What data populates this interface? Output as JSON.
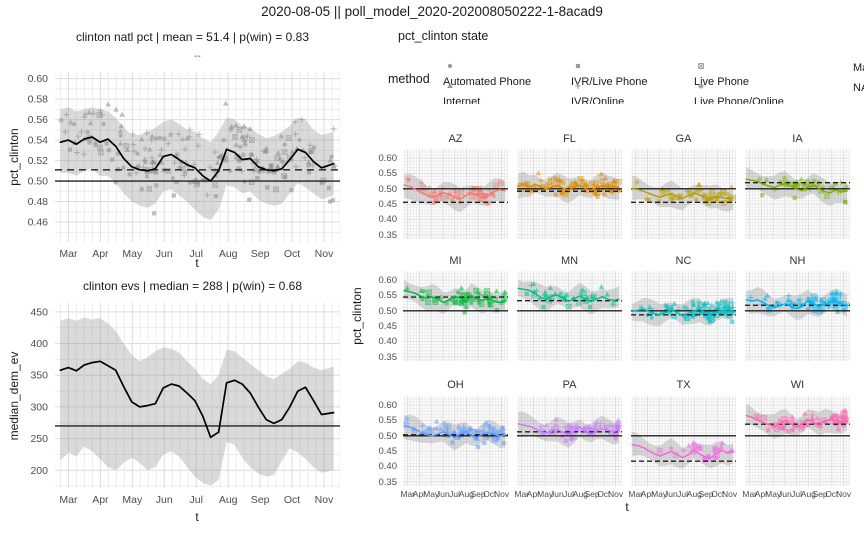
{
  "page": {
    "title": "2020-08-05 || poll_model_2020-202008050222-1-8acad9"
  },
  "left": {
    "natl": {
      "title": "clinton natl pct | mean = 51.4 | p(win) = 0.83",
      "strip_label": "--",
      "ylabel": "pct_clinton",
      "xlabel": "t"
    },
    "ev": {
      "title": "clinton evs | median = 288 | p(win) = 0.68",
      "ylabel": "median_dem_ev",
      "xlabel": "t"
    }
  },
  "right": {
    "subtitle": "pct_clinton state",
    "ylabel": "pct_clinton",
    "xlabel": "t",
    "legend": {
      "title": "method",
      "items": [
        {
          "symbol": "circle",
          "label": "Automated Phone"
        },
        {
          "symbol": "triangle",
          "label": "Internet"
        },
        {
          "symbol": "square",
          "label": "IVR/Live Phone"
        },
        {
          "symbol": "plus",
          "label": "IVR/Online"
        },
        {
          "symbol": "box-x",
          "label": "Live Phone"
        },
        {
          "symbol": "asterisk",
          "label": "Live Phone/Online"
        },
        {
          "symbol": null,
          "label": "Mail"
        },
        {
          "symbol": null,
          "label": "NA"
        }
      ]
    }
  },
  "months": [
    "Mar",
    "Apr",
    "May",
    "Jun",
    "Jul",
    "Aug",
    "Sep",
    "Oct",
    "Nov"
  ],
  "chart_data": [
    {
      "type": "line",
      "title": "clinton natl pct | mean = 51.4 | p(win) = 0.83",
      "xlabel": "t",
      "ylabel": "pct_clinton",
      "xlim": [
        2.58,
        11.5
      ],
      "ylim": [
        0.4405,
        0.6065
      ],
      "yticks": [
        0.46,
        0.48,
        0.5,
        0.52,
        0.54,
        0.56,
        0.58,
        0.6
      ],
      "ytick_minor": 0.01,
      "ytick_major": 0.02,
      "hline_solid": 0.5,
      "hline_dashed": 0.511,
      "line_color": "#000000",
      "xs": [
        2.75,
        3.0,
        3.25,
        3.49,
        3.74,
        3.99,
        4.24,
        4.48,
        4.73,
        4.98,
        5.23,
        5.47,
        5.72,
        5.97,
        6.22,
        6.46,
        6.71,
        6.96,
        7.21,
        7.45,
        7.7,
        7.95,
        8.2,
        8.44,
        8.69,
        8.94,
        9.19,
        9.43,
        9.68,
        9.93,
        10.18,
        10.42,
        10.67,
        10.92,
        11.3
      ],
      "line": [
        0.538,
        0.54,
        0.536,
        0.541,
        0.543,
        0.538,
        0.541,
        0.534,
        0.522,
        0.514,
        0.511,
        0.51,
        0.512,
        0.524,
        0.526,
        0.521,
        0.516,
        0.513,
        0.505,
        0.5,
        0.51,
        0.531,
        0.528,
        0.521,
        0.522,
        0.514,
        0.511,
        0.51,
        0.512,
        0.521,
        0.531,
        0.528,
        0.519,
        0.513,
        0.517
      ],
      "upper": [
        0.57,
        0.572,
        0.568,
        0.57,
        0.572,
        0.57,
        0.568,
        0.562,
        0.552,
        0.545,
        0.545,
        0.548,
        0.552,
        0.558,
        0.56,
        0.556,
        0.55,
        0.548,
        0.542,
        0.538,
        0.548,
        0.562,
        0.56,
        0.554,
        0.552,
        0.546,
        0.542,
        0.544,
        0.548,
        0.554,
        0.562,
        0.56,
        0.55,
        0.545,
        0.548
      ],
      "lower": [
        0.508,
        0.508,
        0.505,
        0.51,
        0.512,
        0.505,
        0.505,
        0.498,
        0.488,
        0.48,
        0.476,
        0.474,
        0.478,
        0.49,
        0.492,
        0.486,
        0.48,
        0.472,
        0.465,
        0.462,
        0.472,
        0.496,
        0.494,
        0.488,
        0.49,
        0.482,
        0.478,
        0.476,
        0.478,
        0.488,
        0.498,
        0.494,
        0.488,
        0.482,
        0.486
      ],
      "scatter": {
        "n": 230,
        "seed": 101,
        "spread": 0.021,
        "late_bias": 0.85,
        "color": "#8a8a8a",
        "shape_weights": {
          "circle": 0.12,
          "triangle": 0.28,
          "plus": 0.24,
          "square": 0.14,
          "box-x": 0.14,
          "asterisk": 0.08
        }
      }
    },
    {
      "type": "line",
      "title": "clinton evs | median = 288 | p(win) = 0.68",
      "xlabel": "t",
      "ylabel": "median_dem_ev",
      "xlim": [
        2.58,
        11.5
      ],
      "ylim": [
        172,
        464
      ],
      "yticks": [
        200,
        250,
        300,
        350,
        400,
        450
      ],
      "ytick_minor": 25,
      "ytick_major": 50,
      "hline_solid": 270,
      "hline_dashed": null,
      "line_color": "#000000",
      "xs": [
        2.75,
        3.0,
        3.25,
        3.49,
        3.74,
        3.99,
        4.24,
        4.48,
        4.73,
        4.98,
        5.23,
        5.47,
        5.72,
        5.97,
        6.22,
        6.46,
        6.71,
        6.96,
        7.21,
        7.45,
        7.7,
        7.95,
        8.2,
        8.44,
        8.69,
        8.94,
        9.19,
        9.43,
        9.68,
        9.93,
        10.18,
        10.42,
        10.67,
        10.92,
        11.3
      ],
      "line": [
        358,
        362,
        357,
        366,
        370,
        372,
        365,
        358,
        332,
        308,
        300,
        302,
        305,
        330,
        336,
        333,
        322,
        310,
        285,
        252,
        260,
        338,
        342,
        336,
        322,
        300,
        280,
        274,
        280,
        300,
        325,
        331,
        310,
        288,
        291
      ],
      "upper": [
        436,
        440,
        436,
        441,
        438,
        440,
        432,
        420,
        400,
        382,
        372,
        378,
        388,
        394,
        392,
        386,
        372,
        360,
        344,
        336,
        350,
        390,
        388,
        378,
        368,
        358,
        348,
        344,
        352,
        360,
        372,
        370,
        362,
        358,
        364
      ],
      "lower": [
        216,
        228,
        222,
        238,
        230,
        218,
        205,
        200,
        212,
        220,
        212,
        200,
        205,
        225,
        230,
        222,
        205,
        190,
        180,
        176,
        185,
        245,
        240,
        220,
        205,
        195,
        190,
        192,
        215,
        235,
        228,
        218,
        205,
        196,
        200
      ],
      "scatter": null
    },
    {
      "type": "small_multiples",
      "subtitle": "pct_clinton state",
      "xlabel": "t",
      "ylabel": "pct_clinton",
      "xlim": [
        2.6,
        11.55
      ],
      "ylim": [
        0.336,
        0.63
      ],
      "yticks": [
        0.35,
        0.4,
        0.45,
        0.5,
        0.55,
        0.6
      ],
      "ytick_minor": 0.01,
      "ytick_major": 0.05,
      "hline_solid": 0.5,
      "band": {
        "base": 0.034,
        "amp": 0.009
      },
      "facet_shape_weights": {
        "circle": 0.1,
        "triangle": 0.18,
        "plus": 0.22,
        "square": 0.12,
        "box-x": 0.28,
        "asterisk": 0.1
      },
      "facets": [
        {
          "label": "AZ",
          "color": "#F8766D",
          "dashed": 0.456,
          "scatter": {
            "n": 55,
            "seed": 7,
            "late_bias": 0.7
          },
          "line": [
            0.512,
            0.508,
            0.498,
            0.488,
            0.479,
            0.472,
            0.48,
            0.487,
            0.482,
            0.472,
            0.466,
            0.478,
            0.487,
            0.479,
            0.47,
            0.478,
            0.491,
            0.497,
            0.494
          ]
        },
        {
          "label": "FL",
          "color": "#DE8C00",
          "dashed": 0.492,
          "scatter": {
            "n": 85,
            "seed": 8,
            "late_bias": 0.75
          },
          "line": [
            0.509,
            0.513,
            0.506,
            0.515,
            0.507,
            0.5,
            0.506,
            0.511,
            0.502,
            0.495,
            0.506,
            0.512,
            0.5,
            0.495,
            0.505,
            0.511,
            0.505,
            0.508,
            0.506
          ]
        },
        {
          "label": "GA",
          "color": "#B79F00",
          "dashed": 0.456,
          "scatter": {
            "n": 50,
            "seed": 9,
            "late_bias": 0.6
          },
          "line": [
            0.501,
            0.498,
            0.492,
            0.485,
            0.478,
            0.472,
            0.479,
            0.483,
            0.475,
            0.469,
            0.478,
            0.486,
            0.48,
            0.472,
            0.467,
            0.476,
            0.471,
            0.468,
            0.471
          ]
        },
        {
          "label": "IA",
          "color": "#7CAE00",
          "dashed": 0.52,
          "scatter": {
            "n": 40,
            "seed": 10,
            "late_bias": 0.6
          },
          "line": [
            0.531,
            0.528,
            0.524,
            0.515,
            0.509,
            0.504,
            0.512,
            0.518,
            0.509,
            0.499,
            0.494,
            0.506,
            0.512,
            0.5,
            0.491,
            0.487,
            0.496,
            0.49,
            0.493
          ]
        },
        {
          "label": "MI",
          "color": "#00BA38",
          "dashed": 0.545,
          "scatter": {
            "n": 60,
            "seed": 11,
            "late_bias": 0.6
          },
          "line": [
            0.566,
            0.562,
            0.557,
            0.547,
            0.541,
            0.545,
            0.539,
            0.527,
            0.536,
            0.548,
            0.541,
            0.529,
            0.548,
            0.539,
            0.534,
            0.541,
            0.531,
            0.527,
            0.531
          ]
        },
        {
          "label": "MN",
          "color": "#00C08B",
          "dashed": 0.533,
          "scatter": {
            "n": 40,
            "seed": 12,
            "late_bias": 0.7
          },
          "line": [
            0.573,
            0.57,
            0.567,
            0.557,
            0.544,
            0.537,
            0.548,
            0.552,
            0.541,
            0.531,
            0.54,
            0.548,
            0.539,
            0.531,
            0.538,
            0.546,
            0.538,
            0.534,
            0.538
          ]
        },
        {
          "label": "NC",
          "color": "#00BFC4",
          "dashed": 0.487,
          "scatter": {
            "n": 95,
            "seed": 13,
            "late_bias": 0.5
          },
          "line": [
            0.498,
            0.502,
            0.506,
            0.498,
            0.491,
            0.487,
            0.495,
            0.503,
            0.494,
            0.484,
            0.492,
            0.499,
            0.506,
            0.494,
            0.487,
            0.496,
            0.501,
            0.498,
            0.501
          ]
        },
        {
          "label": "NH",
          "color": "#00B4F0",
          "dashed": 0.518,
          "scatter": {
            "n": 65,
            "seed": 14,
            "late_bias": 0.5
          },
          "line": [
            0.536,
            0.532,
            0.536,
            0.528,
            0.517,
            0.511,
            0.518,
            0.523,
            0.514,
            0.507,
            0.516,
            0.533,
            0.524,
            0.514,
            0.521,
            0.529,
            0.531,
            0.522,
            0.518
          ]
        },
        {
          "label": "OH",
          "color": "#619CFF",
          "dashed": 0.503,
          "scatter": {
            "n": 75,
            "seed": 15,
            "late_bias": 0.6
          },
          "line": [
            0.531,
            0.528,
            0.521,
            0.511,
            0.504,
            0.5,
            0.506,
            0.513,
            0.504,
            0.494,
            0.506,
            0.516,
            0.501,
            0.494,
            0.506,
            0.511,
            0.505,
            0.499,
            0.503
          ]
        },
        {
          "label": "PA",
          "color": "#C77CFF",
          "dashed": 0.513,
          "scatter": {
            "n": 75,
            "seed": 16,
            "late_bias": 0.6
          },
          "line": [
            0.539,
            0.535,
            0.531,
            0.524,
            0.514,
            0.509,
            0.515,
            0.521,
            0.511,
            0.504,
            0.516,
            0.529,
            0.511,
            0.504,
            0.516,
            0.523,
            0.518,
            0.514,
            0.519
          ]
        },
        {
          "label": "TX",
          "color": "#F564E3",
          "dashed": 0.417,
          "scatter": {
            "n": 26,
            "seed": 17,
            "late_bias": 0.35
          },
          "line": [
            0.471,
            0.468,
            0.461,
            0.451,
            0.441,
            0.434,
            0.442,
            0.449,
            0.439,
            0.429,
            0.438,
            0.453,
            0.441,
            0.431,
            0.427,
            0.441,
            0.453,
            0.444,
            0.448
          ]
        },
        {
          "label": "WI",
          "color": "#FF64B0",
          "dashed": 0.538,
          "scatter": {
            "n": 65,
            "seed": 18,
            "late_bias": 0.55
          },
          "line": [
            0.566,
            0.561,
            0.551,
            0.544,
            0.537,
            0.531,
            0.54,
            0.549,
            0.539,
            0.529,
            0.538,
            0.553,
            0.544,
            0.534,
            0.549,
            0.553,
            0.548,
            0.544,
            0.549
          ]
        }
      ]
    }
  ]
}
